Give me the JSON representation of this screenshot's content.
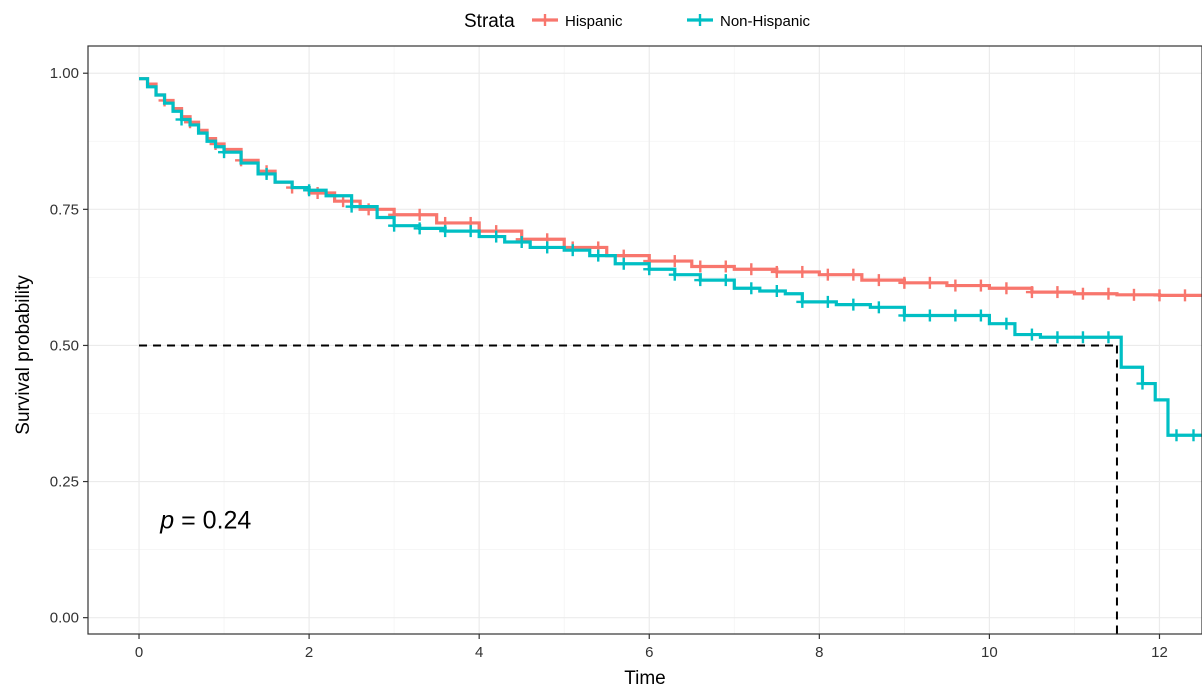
{
  "chart_data": {
    "type": "line",
    "subtype": "kaplan-meier-step",
    "title": "",
    "xlabel": "Time",
    "ylabel": "Survival probability",
    "xlim": [
      -0.6,
      12.5
    ],
    "ylim": [
      -0.03,
      1.05
    ],
    "x_ticks": [
      0,
      2,
      4,
      6,
      8,
      10,
      12
    ],
    "y_ticks": [
      0.0,
      0.25,
      0.5,
      0.75,
      1.0
    ],
    "x_tick_labels": [
      "0",
      "2",
      "4",
      "6",
      "8",
      "10",
      "12"
    ],
    "y_tick_labels": [
      "0.00",
      "0.25",
      "0.50",
      "0.75",
      "1.00"
    ],
    "grid": true,
    "legend": {
      "title": "Strata",
      "position": "top-center",
      "entries": [
        "Hispanic",
        "Non-Hispanic"
      ]
    },
    "annotation": {
      "p_symbol": "p",
      "p_rest": " = 0.24",
      "x": 0.25,
      "y": 0.18
    },
    "median_line": {
      "x": 11.5,
      "y": 0.5,
      "style": "dashed",
      "color": "#000000"
    },
    "series": [
      {
        "name": "Hispanic",
        "color": "#F8766D",
        "x": [
          0,
          0.1,
          0.2,
          0.3,
          0.4,
          0.5,
          0.6,
          0.7,
          0.8,
          0.9,
          1.0,
          1.2,
          1.4,
          1.6,
          1.8,
          2.0,
          2.3,
          2.6,
          3.0,
          3.5,
          4.0,
          4.5,
          5.0,
          5.5,
          6.0,
          6.5,
          7.0,
          7.5,
          8.0,
          8.5,
          9.0,
          9.5,
          10.0,
          10.5,
          11.0,
          11.5,
          12.0,
          12.5
        ],
        "y": [
          0.99,
          0.98,
          0.96,
          0.95,
          0.935,
          0.92,
          0.91,
          0.895,
          0.88,
          0.87,
          0.86,
          0.84,
          0.82,
          0.8,
          0.79,
          0.78,
          0.765,
          0.75,
          0.74,
          0.725,
          0.71,
          0.695,
          0.68,
          0.665,
          0.655,
          0.645,
          0.64,
          0.635,
          0.63,
          0.62,
          0.615,
          0.61,
          0.605,
          0.598,
          0.595,
          0.593,
          0.592,
          0.592
        ],
        "censor_x": [
          0.3,
          0.6,
          0.9,
          1.2,
          1.5,
          1.8,
          2.1,
          2.4,
          2.7,
          3.0,
          3.3,
          3.6,
          3.9,
          4.2,
          4.5,
          4.8,
          5.1,
          5.4,
          5.7,
          6.0,
          6.3,
          6.6,
          6.9,
          7.2,
          7.5,
          7.8,
          8.1,
          8.4,
          8.7,
          9.0,
          9.3,
          9.6,
          9.9,
          10.2,
          10.5,
          10.8,
          11.1,
          11.4,
          11.7,
          12.0,
          12.3
        ]
      },
      {
        "name": "Non-Hispanic",
        "color": "#00BFC4",
        "x": [
          0,
          0.1,
          0.2,
          0.3,
          0.4,
          0.5,
          0.6,
          0.7,
          0.8,
          0.9,
          1.0,
          1.2,
          1.4,
          1.6,
          1.8,
          2.0,
          2.2,
          2.5,
          2.8,
          3.0,
          3.3,
          3.6,
          4.0,
          4.3,
          4.6,
          5.0,
          5.3,
          5.6,
          6.0,
          6.3,
          6.6,
          7.0,
          7.3,
          7.6,
          7.8,
          8.2,
          8.6,
          9.0,
          9.5,
          10.0,
          10.3,
          10.6,
          11.0,
          11.5,
          11.55,
          11.8,
          11.95,
          12.1,
          12.5
        ],
        "y": [
          0.99,
          0.975,
          0.96,
          0.945,
          0.93,
          0.915,
          0.905,
          0.89,
          0.875,
          0.865,
          0.855,
          0.835,
          0.815,
          0.8,
          0.79,
          0.785,
          0.775,
          0.755,
          0.735,
          0.72,
          0.715,
          0.71,
          0.7,
          0.69,
          0.68,
          0.675,
          0.665,
          0.65,
          0.64,
          0.63,
          0.62,
          0.605,
          0.6,
          0.595,
          0.58,
          0.575,
          0.57,
          0.555,
          0.555,
          0.54,
          0.52,
          0.515,
          0.515,
          0.515,
          0.46,
          0.43,
          0.4,
          0.335,
          0.335
        ],
        "censor_x": [
          0.5,
          1.0,
          1.5,
          2.0,
          2.5,
          3.0,
          3.3,
          3.6,
          3.9,
          4.2,
          4.5,
          4.8,
          5.1,
          5.4,
          5.7,
          6.0,
          6.3,
          6.6,
          6.9,
          7.2,
          7.5,
          7.8,
          8.1,
          8.4,
          8.7,
          9.0,
          9.3,
          9.6,
          9.9,
          10.2,
          10.5,
          10.8,
          11.1,
          11.4,
          11.8,
          12.2,
          12.4
        ]
      }
    ]
  }
}
